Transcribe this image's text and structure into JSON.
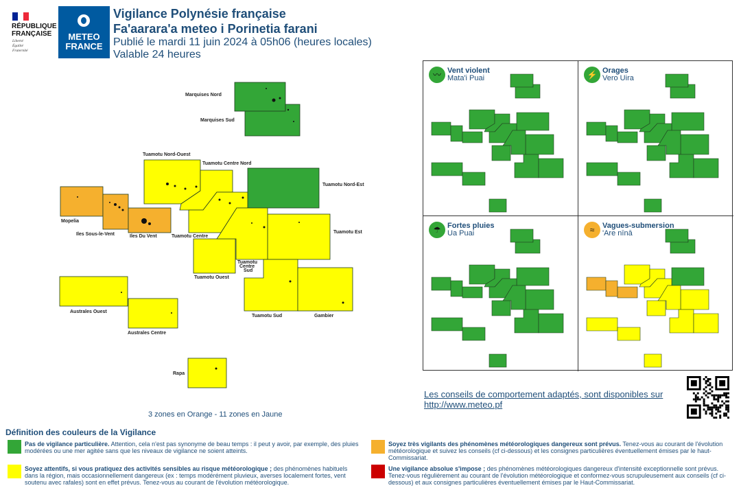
{
  "header": {
    "title_fr": "Vigilance Polynésie française",
    "title_tah": "Fa'aarara'a meteo i Porinetia farani",
    "published": "Publié le mardi 11 juin 2024 à 05h06 (heures locales)",
    "validity": "Valable 24 heures"
  },
  "logos": {
    "republique_line1": "RÉPUBLIQUE",
    "republique_line2": "FRANÇAISE",
    "motto_1": "Liberté",
    "motto_2": "Égalité",
    "motto_3": "Fraternité",
    "meteo_line1": "METEO",
    "meteo_line2": "FRANCE"
  },
  "colors": {
    "green": "#33a637",
    "yellow": "#ffff00",
    "orange": "#f5b02e",
    "red": "#cc0000",
    "border": "#1f3b1f"
  },
  "zones": [
    {
      "name": "Marquises Nord",
      "level": "green"
    },
    {
      "name": "Marquises Sud",
      "level": "green"
    },
    {
      "name": "Tuamotu Nord-Ouest",
      "level": "yellow"
    },
    {
      "name": "Tuamotu Centre Nord",
      "level": "yellow"
    },
    {
      "name": "Tuamotu Nord-Est",
      "level": "green"
    },
    {
      "name": "Mopelia",
      "level": "orange"
    },
    {
      "name": "Iles Sous-le-Vent",
      "level": "orange"
    },
    {
      "name": "Iles Du Vent",
      "level": "orange"
    },
    {
      "name": "Tuamotu Centre",
      "level": "yellow"
    },
    {
      "name": "Tuamotu Est",
      "level": "yellow"
    },
    {
      "name": "Tuamotu Ouest",
      "level": "yellow"
    },
    {
      "name": "Tuamotu Centre Sud",
      "level": "yellow"
    },
    {
      "name": "Australes Ouest",
      "level": "yellow"
    },
    {
      "name": "Australes Centre",
      "level": "yellow"
    },
    {
      "name": "Tuamotu Sud",
      "level": "yellow"
    },
    {
      "name": "Gambier",
      "level": "yellow"
    },
    {
      "name": "Rapa",
      "level": "yellow"
    }
  ],
  "labels": {
    "tuamotu_centre_sud_1": "Tuamotu",
    "tuamotu_centre_sud_2": "Centre",
    "tuamotu_centre_sud_3": "Sud"
  },
  "phenomena": [
    {
      "title": "Vent violent",
      "subtitle": "Mata'i Puai",
      "icon": "wind-icon",
      "icon_color": "#33a637",
      "level": "green"
    },
    {
      "title": "Orages",
      "subtitle": "Vero Uira",
      "icon": "lightning-icon",
      "icon_color": "#33a637",
      "level": "green"
    },
    {
      "title": "Fortes pluies",
      "subtitle": "Ua Puai",
      "icon": "rain-icon",
      "icon_color": "#33a637",
      "level": "green"
    },
    {
      "title": "Vagues-submersion",
      "subtitle": "'Are nīnā",
      "icon": "wave-icon",
      "icon_color": "#f5b02e",
      "level": "mixed"
    }
  ],
  "advice": {
    "text": "Les conseils de comportement adaptés, sont disponibles sur http://www.meteo.pf"
  },
  "summary": "3 zones en Orange - 11 zones en Jaune",
  "definitions": {
    "title": "Définition des couleurs de la Vigilance",
    "items": [
      {
        "color": "green",
        "bold": "Pas de vigilance particulière.",
        "text": " Attention, cela n'est pas synonyme de beau temps : il peut y avoir, par exemple, des pluies modérées ou une mer agitée sans que les niveaux de vigilance ne soient atteints."
      },
      {
        "color": "orange",
        "bold": "Soyez très vigilants des phénomènes météorologiques dangereux sont prévus.",
        "text": " Tenez-vous au courant de l'évolution météorologique et suivez les conseils (cf ci-dessous) et les consignes particulières éventuellement émises par le haut-Commissariat."
      },
      {
        "color": "yellow",
        "bold": "Soyez attentifs, si vous pratiquez des activités sensibles au risque météorologique ;",
        "text": " des phénomènes habituels dans la région, mais occasionnellement dangereux (ex : temps modérément pluvieux, averses localement fortes, vent soutenu avec rafales) sont en effet prévus. Tenez-vous au courant de l'évolution météorologique."
      },
      {
        "color": "red",
        "bold": "Une vigilance absolue s'impose ;",
        "text": " des phénomènes météorologiques dangereux d'intensité exceptionnelle sont prévus. Tenez-vous régulièrement au courant de l'évolution météorologique et conformez-vous scrupuleusement aux conseils (cf ci-dessous) et aux consignes particulières éventuellement émises par le Haut-Commissariat."
      }
    ]
  }
}
